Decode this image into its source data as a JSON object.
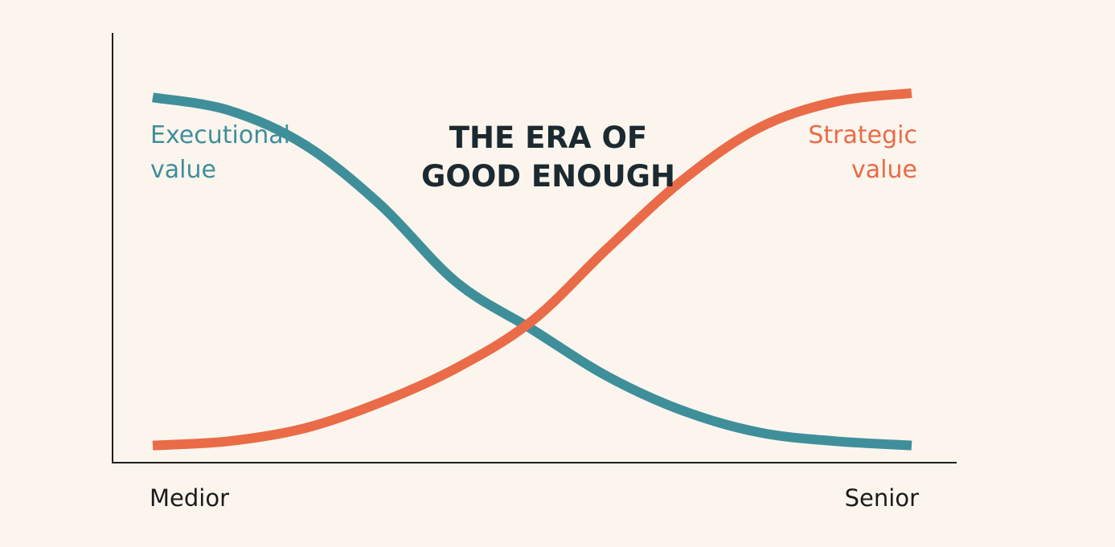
{
  "chart_data": {
    "type": "line",
    "title": "THE ERA OF GOOD ENOUGH",
    "title_lines": [
      "THE ERA OF",
      "GOOD ENOUGH"
    ],
    "xlabel": "",
    "ylabel": "",
    "x_tick_labels": [
      "Medior",
      "Senior"
    ],
    "xlim": [
      0,
      1
    ],
    "ylim": [
      0,
      1
    ],
    "grid": false,
    "legend": "none",
    "series": [
      {
        "name": "Executional value",
        "label_lines": [
          "Executional",
          "value"
        ],
        "color": "#3f8f9b",
        "x": [
          0,
          0.1,
          0.2,
          0.3,
          0.4,
          0.5,
          0.6,
          0.7,
          0.8,
          0.9,
          1.0
        ],
        "y": [
          0.85,
          0.82,
          0.74,
          0.6,
          0.42,
          0.31,
          0.2,
          0.12,
          0.07,
          0.05,
          0.04
        ]
      },
      {
        "name": "Strategic value",
        "label_lines": [
          "Strategic",
          "value"
        ],
        "color": "#ea6b47",
        "x": [
          0,
          0.1,
          0.2,
          0.3,
          0.4,
          0.5,
          0.6,
          0.7,
          0.8,
          0.9,
          1.0
        ],
        "y": [
          0.04,
          0.05,
          0.08,
          0.14,
          0.22,
          0.33,
          0.5,
          0.66,
          0.78,
          0.84,
          0.86
        ]
      }
    ]
  }
}
